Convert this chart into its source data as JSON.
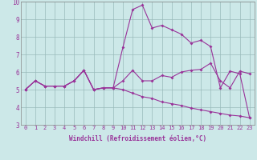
{
  "xlabel": "Windchill (Refroidissement éolien,°C)",
  "bg_color": "#cce8e8",
  "line_color": "#993399",
  "xlim": [
    -0.5,
    23.5
  ],
  "ylim": [
    3,
    10
  ],
  "xticks": [
    0,
    1,
    2,
    3,
    4,
    5,
    6,
    7,
    8,
    9,
    10,
    11,
    12,
    13,
    14,
    15,
    16,
    17,
    18,
    19,
    20,
    21,
    22,
    23
  ],
  "yticks": [
    3,
    4,
    5,
    6,
    7,
    8,
    9,
    10
  ],
  "line1_x": [
    0,
    1,
    2,
    3,
    4,
    5,
    6,
    7,
    8,
    9,
    10,
    11,
    12,
    13,
    14,
    15,
    16,
    17,
    18,
    19,
    20,
    21,
    22,
    23
  ],
  "line1_y": [
    5.0,
    5.5,
    5.2,
    5.2,
    5.2,
    5.5,
    6.1,
    5.0,
    5.1,
    5.1,
    5.5,
    6.1,
    5.5,
    5.5,
    5.8,
    5.7,
    6.0,
    6.1,
    6.15,
    6.5,
    5.5,
    5.1,
    6.05,
    5.9
  ],
  "line2_x": [
    0,
    1,
    2,
    3,
    4,
    5,
    6,
    7,
    8,
    9,
    10,
    11,
    12,
    13,
    14,
    15,
    16,
    17,
    18,
    19,
    20,
    21,
    22,
    23
  ],
  "line2_y": [
    5.0,
    5.5,
    5.2,
    5.2,
    5.2,
    5.5,
    6.1,
    5.0,
    5.1,
    5.1,
    7.4,
    9.55,
    9.8,
    8.5,
    8.65,
    8.4,
    8.15,
    7.65,
    7.8,
    7.45,
    5.1,
    6.05,
    5.9,
    3.4
  ],
  "line3_x": [
    0,
    1,
    2,
    3,
    4,
    5,
    6,
    7,
    8,
    9,
    10,
    11,
    12,
    13,
    14,
    15,
    16,
    17,
    18,
    19,
    20,
    21,
    22,
    23
  ],
  "line3_y": [
    5.0,
    5.5,
    5.2,
    5.2,
    5.2,
    5.5,
    6.1,
    5.0,
    5.1,
    5.1,
    5.0,
    4.8,
    4.6,
    4.5,
    4.3,
    4.2,
    4.1,
    3.95,
    3.85,
    3.75,
    3.65,
    3.55,
    3.5,
    3.4
  ],
  "grid_color": "#99bbbb",
  "marker": "D",
  "markersize": 2.0,
  "linewidth": 0.8,
  "tick_fontsize": 5.0,
  "xlabel_fontsize": 5.5
}
